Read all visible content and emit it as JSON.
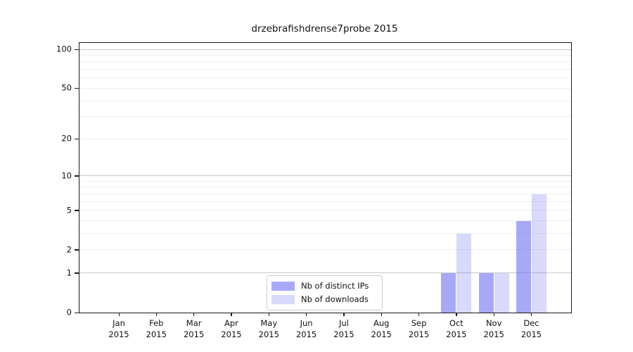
{
  "title": "drzebrafishdrense7probe 2015",
  "colors": {
    "distinct_ips": "rgba(102,102,245,0.57)",
    "downloads": "rgba(102,102,245,0.25)",
    "major_grid": "#c7c7c7",
    "minor_grid": "#ededed",
    "spine": "#1a1a1a",
    "text": "#111111",
    "legend_border": "#cccccc"
  },
  "legend": {
    "items": [
      {
        "key": "distinct_ips",
        "label": "Nb of distinct IPs"
      },
      {
        "key": "downloads",
        "label": "Nb of downloads"
      }
    ]
  },
  "chart_data": {
    "type": "bar",
    "title": "drzebrafishdrense7probe 2015",
    "categories": [
      {
        "month": "Jan",
        "year": "2015"
      },
      {
        "month": "Feb",
        "year": "2015"
      },
      {
        "month": "Mar",
        "year": "2015"
      },
      {
        "month": "Apr",
        "year": "2015"
      },
      {
        "month": "May",
        "year": "2015"
      },
      {
        "month": "Jun",
        "year": "2015"
      },
      {
        "month": "Jul",
        "year": "2015"
      },
      {
        "month": "Aug",
        "year": "2015"
      },
      {
        "month": "Sep",
        "year": "2015"
      },
      {
        "month": "Oct",
        "year": "2015"
      },
      {
        "month": "Nov",
        "year": "2015"
      },
      {
        "month": "Dec",
        "year": "2015"
      }
    ],
    "series": [
      {
        "key": "distinct_ips",
        "name": "Nb of distinct IPs",
        "values": [
          0,
          0,
          0,
          0,
          0,
          0,
          0,
          0,
          0,
          1,
          1,
          4
        ]
      },
      {
        "key": "downloads",
        "name": "Nb of downloads",
        "values": [
          0,
          0,
          0,
          0,
          0,
          0,
          0,
          0,
          0,
          3,
          1,
          7
        ]
      }
    ],
    "xlabel": "",
    "ylabel": "",
    "yscale": "log1p",
    "ylim": [
      0,
      112
    ],
    "yticks": [
      0,
      1,
      2,
      5,
      10,
      20,
      50,
      100
    ],
    "major_gridlines": [
      1,
      10,
      100
    ],
    "minor_gridlines": [
      2,
      3,
      4,
      5,
      6,
      7,
      8,
      9,
      20,
      30,
      40,
      50,
      60,
      70,
      80,
      90
    ],
    "grid": "horizontal",
    "legend_position": "lower-center"
  }
}
